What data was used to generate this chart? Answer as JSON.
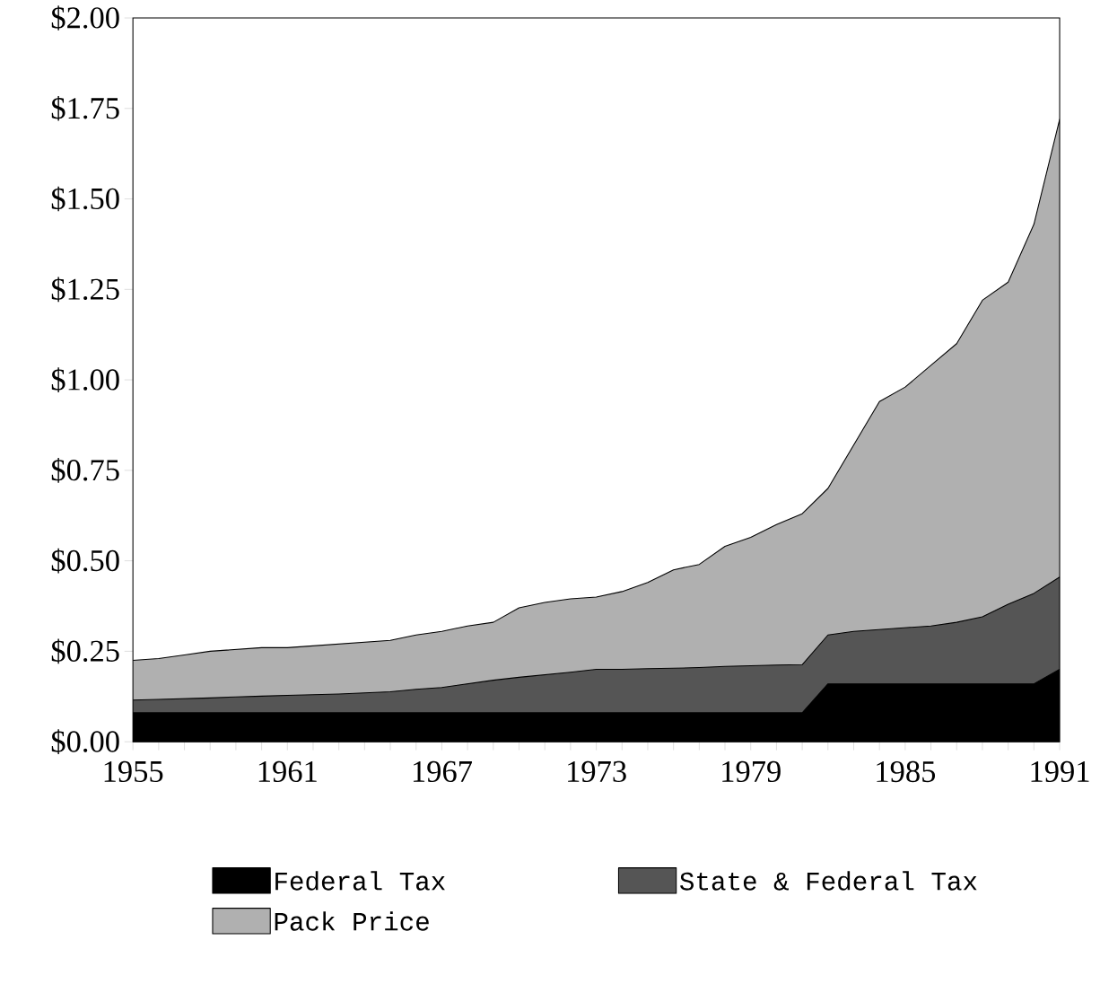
{
  "chart_data": {
    "type": "area",
    "legend": "bottom",
    "x": [
      1955,
      1956,
      1957,
      1958,
      1959,
      1960,
      1961,
      1962,
      1963,
      1964,
      1965,
      1966,
      1967,
      1968,
      1969,
      1970,
      1971,
      1972,
      1973,
      1974,
      1975,
      1976,
      1977,
      1978,
      1979,
      1980,
      1981,
      1982,
      1983,
      1984,
      1985,
      1986,
      1987,
      1988,
      1989,
      1990,
      1991
    ],
    "series": [
      {
        "name": "Federal Tax",
        "color": "#000000",
        "values": [
          0.08,
          0.08,
          0.08,
          0.08,
          0.08,
          0.08,
          0.08,
          0.08,
          0.08,
          0.08,
          0.08,
          0.08,
          0.08,
          0.08,
          0.08,
          0.08,
          0.08,
          0.08,
          0.08,
          0.08,
          0.08,
          0.08,
          0.08,
          0.08,
          0.08,
          0.08,
          0.08,
          0.16,
          0.16,
          0.16,
          0.16,
          0.16,
          0.16,
          0.16,
          0.16,
          0.16,
          0.2
        ]
      },
      {
        "name": "State & Federal Tax",
        "color": "#555555",
        "values": [
          0.115,
          0.117,
          0.119,
          0.121,
          0.124,
          0.126,
          0.128,
          0.13,
          0.132,
          0.135,
          0.138,
          0.145,
          0.15,
          0.16,
          0.17,
          0.178,
          0.185,
          0.192,
          0.2,
          0.2,
          0.202,
          0.203,
          0.205,
          0.208,
          0.21,
          0.212,
          0.213,
          0.295,
          0.305,
          0.31,
          0.315,
          0.32,
          0.33,
          0.345,
          0.38,
          0.41,
          0.455
        ]
      },
      {
        "name": "Pack Price",
        "color": "#b0b0b0",
        "values": [
          0.225,
          0.23,
          0.24,
          0.25,
          0.255,
          0.26,
          0.26,
          0.265,
          0.27,
          0.275,
          0.28,
          0.295,
          0.305,
          0.32,
          0.33,
          0.37,
          0.385,
          0.395,
          0.4,
          0.415,
          0.44,
          0.475,
          0.49,
          0.54,
          0.565,
          0.6,
          0.63,
          0.7,
          0.82,
          0.94,
          0.98,
          1.04,
          1.1,
          1.22,
          1.27,
          1.43,
          1.72
        ]
      }
    ],
    "xlim": [
      1955,
      1991
    ],
    "xticks": [
      1955,
      {
        "value": 1956,
        "label": null
      },
      {
        "value": 1957,
        "label": null
      },
      {
        "value": 1958,
        "label": null
      },
      {
        "value": 1959,
        "label": null
      },
      {
        "value": 1960,
        "label": null
      },
      1961,
      {
        "value": 1962,
        "label": null
      },
      {
        "value": 1963,
        "label": null
      },
      {
        "value": 1964,
        "label": null
      },
      {
        "value": 1965,
        "label": null
      },
      {
        "value": 1966,
        "label": null
      },
      1967,
      {
        "value": 1968,
        "label": null
      },
      {
        "value": 1969,
        "label": null
      },
      {
        "value": 1970,
        "label": null
      },
      {
        "value": 1971,
        "label": null
      },
      {
        "value": 1972,
        "label": null
      },
      1973,
      {
        "value": 1974,
        "label": null
      },
      {
        "value": 1975,
        "label": null
      },
      {
        "value": 1976,
        "label": null
      },
      {
        "value": 1977,
        "label": null
      },
      {
        "value": 1978,
        "label": null
      },
      1979,
      {
        "value": 1980,
        "label": null
      },
      {
        "value": 1981,
        "label": null
      },
      {
        "value": 1982,
        "label": null
      },
      {
        "value": 1983,
        "label": null
      },
      {
        "value": 1984,
        "label": null
      },
      1985,
      {
        "value": 1986,
        "label": null
      },
      {
        "value": 1987,
        "label": null
      },
      {
        "value": 1988,
        "label": null
      },
      {
        "value": 1989,
        "label": null
      },
      {
        "value": 1990,
        "label": null
      },
      1991
    ],
    "ylim": [
      0,
      2
    ],
    "yticks": [
      {
        "value": 0,
        "label": "$0.00"
      },
      {
        "value": 0.25,
        "label": "$0.25"
      },
      {
        "value": 0.5,
        "label": "$0.50"
      },
      {
        "value": 0.75,
        "label": "$0.75"
      },
      {
        "value": 1,
        "label": "$1.00"
      },
      {
        "value": 1.25,
        "label": "$1.25"
      },
      {
        "value": 1.5,
        "label": "$1.50"
      },
      {
        "value": 1.75,
        "label": "$1.75"
      },
      {
        "value": 2,
        "label": "$2.00"
      }
    ]
  }
}
